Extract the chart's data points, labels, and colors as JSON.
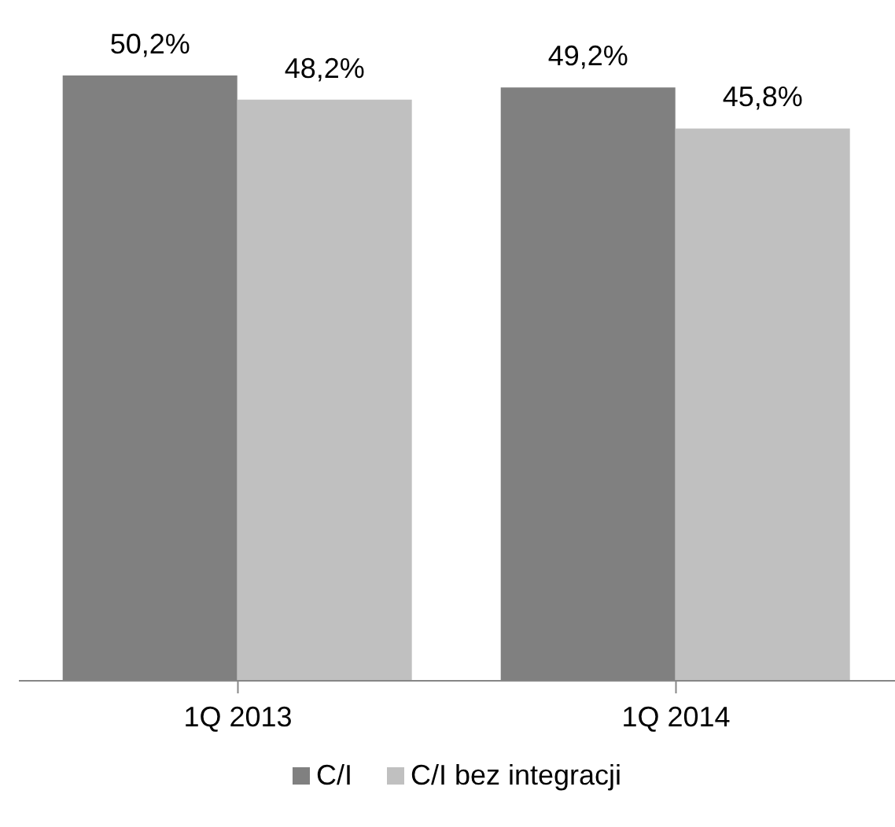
{
  "chart_data": {
    "type": "bar",
    "categories": [
      "1Q 2013",
      "1Q 2014"
    ],
    "series": [
      {
        "name": "C/I",
        "color": "#808080",
        "values": [
          50.2,
          49.2
        ],
        "value_labels": [
          "50,2%",
          "49,2%"
        ]
      },
      {
        "name": "C/I bez integracji",
        "color": "#c0c0c0",
        "values": [
          48.2,
          45.8
        ],
        "value_labels": [
          "48,2%",
          "45,8%"
        ]
      }
    ],
    "tick_labels": "x",
    "legend": "bottom",
    "grid": false
  }
}
